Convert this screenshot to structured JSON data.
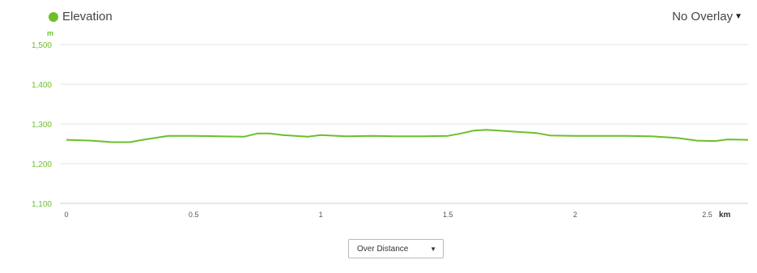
{
  "legend": {
    "label": "Elevation",
    "color": "#6cbf2b"
  },
  "overlay": {
    "label": "No Overlay",
    "icon": "caret-down-icon"
  },
  "mode_select": {
    "value": "Over Distance",
    "icon": "caret-down-icon"
  },
  "chart_data": {
    "type": "line",
    "y_unit": "m",
    "x_unit": "km",
    "ylim": [
      1100,
      1500
    ],
    "xlim": [
      0,
      2.68
    ],
    "y_ticks": [
      "1,100",
      "1,200",
      "1,300",
      "1,400",
      "1,500"
    ],
    "x_ticks": [
      "0",
      "0.5",
      "1",
      "1.5",
      "2",
      "2.5"
    ],
    "grid": true,
    "legend_position": "top-left",
    "series": [
      {
        "name": "Elevation",
        "color": "#6cbf2b",
        "x": [
          0,
          0.1,
          0.18,
          0.25,
          0.3,
          0.4,
          0.5,
          0.6,
          0.7,
          0.75,
          0.8,
          0.85,
          0.9,
          0.95,
          1.0,
          1.1,
          1.2,
          1.3,
          1.4,
          1.5,
          1.55,
          1.6,
          1.65,
          1.75,
          1.85,
          1.9,
          2.0,
          2.1,
          2.2,
          2.3,
          2.4,
          2.48,
          2.55,
          2.6,
          2.68
        ],
        "y": [
          1260,
          1258,
          1254,
          1254,
          1260,
          1270,
          1270,
          1269,
          1268,
          1276,
          1276,
          1272,
          1270,
          1268,
          1272,
          1269,
          1270,
          1269,
          1269,
          1270,
          1276,
          1283,
          1285,
          1281,
          1277,
          1271,
          1270,
          1270,
          1270,
          1269,
          1265,
          1258,
          1257,
          1261,
          1260
        ]
      }
    ]
  }
}
